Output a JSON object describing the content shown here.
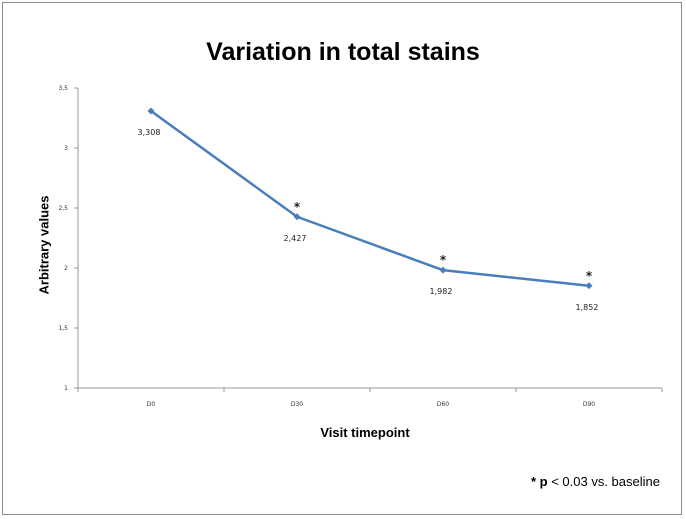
{
  "chart_data": {
    "type": "line",
    "title": "Variation in total stains",
    "xlabel": "Visit timepoint",
    "ylabel": "Arbitrary values",
    "categories": [
      "D0",
      "D30",
      "D60",
      "D90"
    ],
    "series": [
      {
        "values": [
          3.308,
          2.427,
          1.982,
          1.852
        ],
        "color": "#4a7ebb"
      }
    ],
    "data_labels": [
      "3,308",
      "2,427",
      "1,982",
      "1,852"
    ],
    "significance_markers": [
      "",
      "*",
      "*",
      "*"
    ],
    "y_ticks": [
      1,
      1.5,
      2,
      2.5,
      3,
      3.5
    ],
    "y_tick_labels": [
      "1",
      "1,5",
      "2",
      "2,5",
      "3",
      "3,5"
    ],
    "ylim": [
      1,
      3.5
    ],
    "grid": false,
    "legend": "none"
  },
  "footnote": {
    "star": "* ",
    "p": "p",
    "rest": " < 0.03 vs. baseline"
  }
}
